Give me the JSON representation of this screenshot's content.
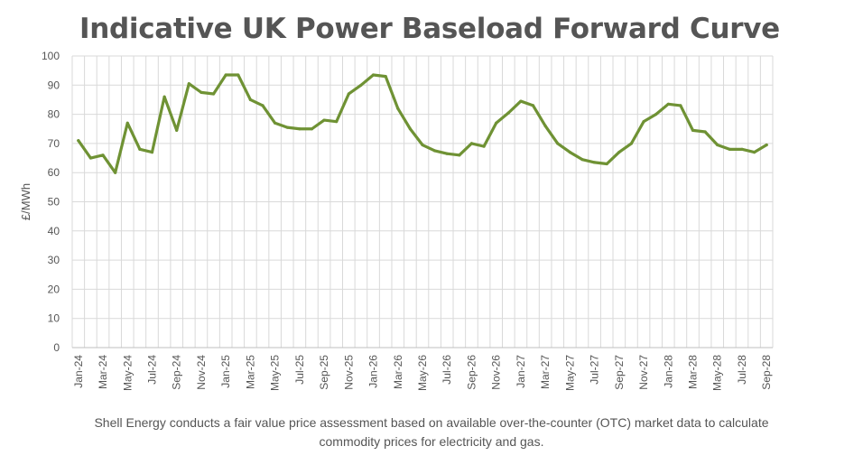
{
  "chart_data": {
    "type": "line",
    "title": "Indicative UK Power Baseload Forward Curve",
    "ylabel": "£/MWh",
    "xlabel": "",
    "ylim": [
      0,
      100
    ],
    "yticks": [
      0,
      10,
      20,
      30,
      40,
      50,
      60,
      70,
      80,
      90,
      100
    ],
    "grid": true,
    "legend": "none",
    "line_color": "#6f9234",
    "x": [
      "Jan-24",
      "Feb-24",
      "Mar-24",
      "Apr-24",
      "May-24",
      "Jun-24",
      "Jul-24",
      "Aug-24",
      "Sep-24",
      "Oct-24",
      "Nov-24",
      "Dec-24",
      "Jan-25",
      "Feb-25",
      "Mar-25",
      "Apr-25",
      "May-25",
      "Jun-25",
      "Jul-25",
      "Aug-25",
      "Sep-25",
      "Oct-25",
      "Nov-25",
      "Dec-25",
      "Jan-26",
      "Feb-26",
      "Mar-26",
      "Apr-26",
      "May-26",
      "Jun-26",
      "Jul-26",
      "Aug-26",
      "Sep-26",
      "Oct-26",
      "Nov-26",
      "Dec-26",
      "Jan-27",
      "Feb-27",
      "Mar-27",
      "Apr-27",
      "May-27",
      "Jun-27",
      "Jul-27",
      "Aug-27",
      "Sep-27",
      "Oct-27",
      "Nov-27",
      "Dec-27",
      "Jan-28",
      "Feb-28",
      "Mar-28",
      "Apr-28",
      "May-28",
      "Jun-28",
      "Jul-28",
      "Aug-28",
      "Sep-28"
    ],
    "xtick_labels": [
      "Jan-24",
      "Mar-24",
      "May-24",
      "Jul-24",
      "Sep-24",
      "Nov-24",
      "Jan-25",
      "Mar-25",
      "May-25",
      "Jul-25",
      "Sep-25",
      "Nov-25",
      "Jan-26",
      "Mar-26",
      "May-26",
      "Jul-26",
      "Sep-26",
      "Nov-26",
      "Jan-27",
      "Mar-27",
      "May-27",
      "Jul-27",
      "Sep-27",
      "Nov-27",
      "Jan-28",
      "Mar-28",
      "May-28",
      "Jul-28",
      "Sep-28"
    ],
    "series": [
      {
        "values": [
          71,
          65,
          66,
          60,
          77,
          68,
          67,
          86,
          74.5,
          90.5,
          87.5,
          87,
          93.5,
          93.5,
          85,
          83,
          77,
          75.5,
          75,
          75,
          78,
          77.5,
          87,
          90,
          93.5,
          93,
          82,
          75,
          69.5,
          67.5,
          66.5,
          66,
          70,
          69,
          77,
          80.5,
          84.5,
          83,
          76,
          70,
          67,
          64.5,
          63.5,
          63,
          67,
          70,
          77.5,
          80,
          83.5,
          83,
          74.5,
          74,
          69.5,
          68,
          68,
          67,
          69.5
        ]
      }
    ]
  },
  "caption": {
    "line1": "Shell Energy conducts a fair value price assessment based on available over-the-counter (OTC) market data to calculate",
    "line2": "commodity prices for electricity and gas."
  }
}
